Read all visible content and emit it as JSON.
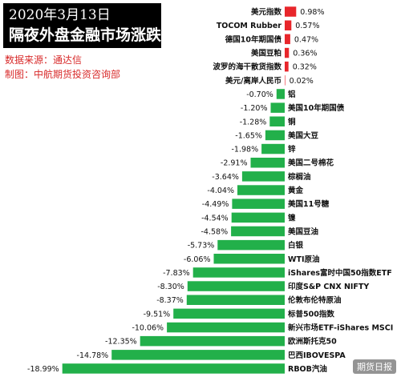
{
  "header": {
    "title_line1": "2020年3月13日",
    "title_line2": "隔夜外盘金融市场涨跌",
    "source_line": "数据来源：通达信",
    "maker_line": "制图：中航期货投资咨询部"
  },
  "watermark": "期货日报",
  "colors": {
    "positive": "#e8262b",
    "negative": "#22b04a"
  },
  "chart_data": {
    "type": "bar",
    "orientation": "horizontal",
    "title": "隔夜外盘金融市场涨跌",
    "unit": "%",
    "categories": [
      "美元指数",
      "TOCOM Rubber",
      "德国10年期国债",
      "美国豆粕",
      "波罗的海干散货指数",
      "美元/离岸人民币",
      "铝",
      "美国10年期国债",
      "铜",
      "美国大豆",
      "锌",
      "美国二号棉花",
      "棕榈油",
      "黄金",
      "美国11号糖",
      "镍",
      "美国豆油",
      "白银",
      "WTI原油",
      "iShares富时中国50指数ETF",
      "印度S&P CNX NIFTY",
      "伦敦布伦特原油",
      "标普500指数",
      "新兴市场ETF-iShares MSCI",
      "欧洲斯托克50",
      "巴西IBOVESPA",
      "RBOB汽油"
    ],
    "values": [
      0.98,
      0.57,
      0.47,
      0.36,
      0.32,
      0.02,
      -0.7,
      -1.2,
      -1.28,
      -1.65,
      -1.98,
      -2.91,
      -3.64,
      -4.04,
      -4.49,
      -4.54,
      -4.58,
      -5.73,
      -6.06,
      -7.83,
      -8.3,
      -8.37,
      -9.51,
      -10.06,
      -12.35,
      -14.78,
      -18.99
    ],
    "value_labels": [
      "0.98%",
      "0.57%",
      "0.47%",
      "0.36%",
      "0.32%",
      "0.02%",
      "-0.70%",
      "-1.20%",
      "-1.28%",
      "-1.65%",
      "-1.98%",
      "-2.91%",
      "-3.64%",
      "-4.04%",
      "-4.49%",
      "-4.54%",
      "-4.58%",
      "-5.73%",
      "-6.06%",
      "-7.83%",
      "-8.30%",
      "-8.37%",
      "-9.51%",
      "-10.06%",
      "-12.35%",
      "-14.78%",
      "-18.99%"
    ],
    "xlim": [
      -19.2,
      1.3
    ],
    "grid": false,
    "legend": "none"
  }
}
